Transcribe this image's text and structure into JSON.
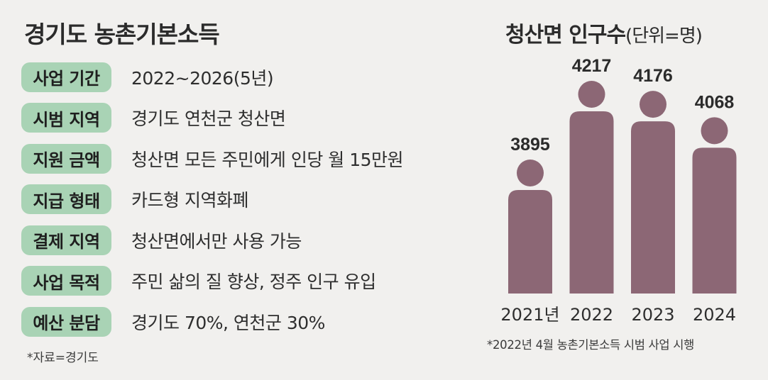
{
  "left_panel": {
    "title": "경기도 농촌기본소득",
    "rows": [
      {
        "label": "사업 기간",
        "value": "2022~2026(5년)"
      },
      {
        "label": "시범 지역",
        "value": "경기도 연천군 청산면"
      },
      {
        "label": "지원 금액",
        "value": "청산면 모든 주민에게 인당 월 15만원"
      },
      {
        "label": "지급 형태",
        "value": "카드형 지역화폐"
      },
      {
        "label": "결제 지역",
        "value": "청산면에서만 사용 가능"
      },
      {
        "label": "사업 목적",
        "value": "주민 삶의 질 향상, 정주 인구 유입"
      },
      {
        "label": "예산 분담",
        "value": "경기도 70%, 연천군 30%"
      }
    ],
    "source": "*자료=경기도"
  },
  "colors": {
    "label_bg": "#a9d3b5",
    "bar": "#8c6775",
    "background": "#f1f0ee"
  },
  "chart_data": {
    "type": "bar",
    "title": "청산면 인구수",
    "unit": "(단위=명)",
    "categories": [
      "2021년",
      "2022",
      "2023",
      "2024"
    ],
    "values": [
      3895,
      4217,
      4176,
      4068
    ],
    "footnote": "*2022년 4월 농촌기본소득 시범 사업 시행"
  }
}
